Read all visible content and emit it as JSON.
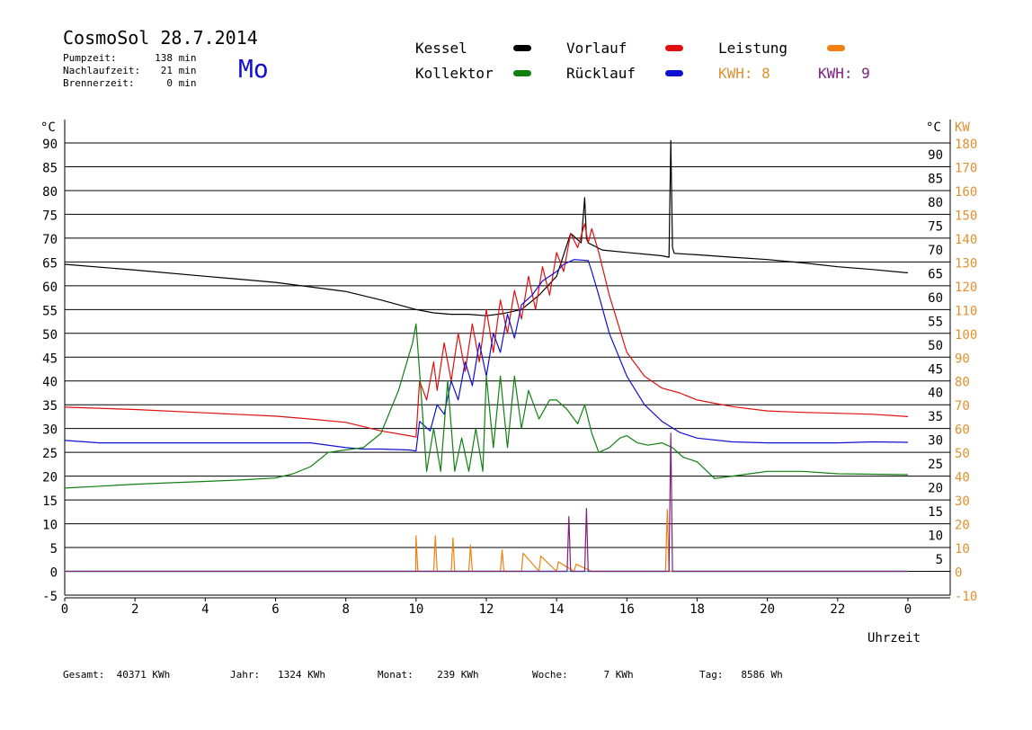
{
  "header": {
    "title": "CosmoSol 28.7.2014",
    "day": "Mo",
    "stats": [
      {
        "label": "Pumpzeit:",
        "value": "138",
        "unit": "min"
      },
      {
        "label": "Nachlaufzeit:",
        "value": "21",
        "unit": "min"
      },
      {
        "label": "Brennerzeit:",
        "value": "0",
        "unit": "min"
      }
    ]
  },
  "legend": {
    "items": [
      {
        "label": "Kessel",
        "color": "#000000"
      },
      {
        "label": "Vorlauf",
        "color": "#e01010"
      },
      {
        "label": "Leistung",
        "color": "#f08010"
      },
      {
        "label": "Kollektor",
        "color": "#108010"
      },
      {
        "label": "Rücklauf",
        "color": "#1010d0"
      }
    ],
    "kwh": [
      {
        "label": "KWH: 8",
        "color": "#e09030"
      },
      {
        "label": "KWH: 9",
        "color": "#802080"
      }
    ]
  },
  "footer": {
    "gesamt": "Gesamt:  40371 KWh",
    "jahr": "Jahr:   1324 KWh",
    "monat": "Monat:    239 KWh",
    "woche": "Woche:      7 KWh",
    "tag": "Tag:   8586 Wh"
  },
  "chart_data": {
    "type": "line",
    "xlabel": "Uhrzeit",
    "ylabel": "°C",
    "ylabel_right": "KW",
    "xlim": [
      0,
      24
    ],
    "ylim": [
      -5,
      95
    ],
    "ylim_right": [
      -10,
      190
    ],
    "x_ticks": [
      "0",
      "2",
      "4",
      "6",
      "8",
      "10",
      "12",
      "14",
      "16",
      "18",
      "20",
      "22",
      "0"
    ],
    "y_ticks_left": [
      "-5",
      "0",
      "5",
      "10",
      "15",
      "20",
      "25",
      "30",
      "35",
      "40",
      "45",
      "50",
      "55",
      "60",
      "65",
      "70",
      "75",
      "80",
      "85",
      "90"
    ],
    "y_ticks_mid": [
      "5",
      "10",
      "15",
      "20",
      "25",
      "30",
      "35",
      "40",
      "45",
      "50",
      "55",
      "60",
      "65",
      "70",
      "75",
      "80",
      "85",
      "90"
    ],
    "y_ticks_right": [
      "-10",
      "0",
      "10",
      "20",
      "30",
      "40",
      "50",
      "60",
      "70",
      "80",
      "90",
      "100",
      "110",
      "120",
      "130",
      "140",
      "150",
      "160",
      "170",
      "180"
    ],
    "grid": true,
    "series": [
      {
        "name": "Kessel",
        "color": "#000000",
        "x": [
          0,
          2,
          4,
          6,
          8,
          9,
          10,
          10.5,
          11,
          11.5,
          12,
          12.5,
          13,
          13.5,
          14,
          14.4,
          14.7,
          14.8,
          14.85,
          14.9,
          15.3,
          16,
          17,
          17.2,
          17.25,
          17.3,
          17.35,
          18,
          19,
          20,
          21,
          22,
          23,
          24
        ],
        "y": [
          64.5,
          63.3,
          62,
          60.7,
          58.8,
          57,
          55,
          54.3,
          54,
          54,
          53.7,
          54.2,
          55,
          58,
          62,
          71,
          69,
          78.5,
          70,
          69,
          67.5,
          67,
          66.3,
          66,
          90.5,
          68,
          66.8,
          66.5,
          66,
          65.5,
          64.8,
          64,
          63.4,
          62.7
        ]
      },
      {
        "name": "Vorlauf",
        "color": "#e01010",
        "x": [
          0,
          2,
          4,
          6,
          7,
          8,
          9,
          9.8,
          10,
          10.1,
          10.3,
          10.5,
          10.6,
          10.8,
          11,
          11.2,
          11.4,
          11.6,
          11.8,
          12,
          12.2,
          12.4,
          12.6,
          12.8,
          13,
          13.2,
          13.4,
          13.6,
          13.8,
          14,
          14.2,
          14.4,
          14.6,
          14.8,
          14.9,
          15,
          15.2,
          15.5,
          16,
          16.5,
          17,
          17.5,
          18,
          19,
          20,
          21,
          22,
          23,
          24
        ],
        "y": [
          34.5,
          34,
          33.3,
          32.6,
          32,
          31.3,
          29.5,
          28.5,
          28.2,
          40,
          36,
          44,
          38,
          48,
          40,
          50,
          42,
          52,
          44,
          55,
          46,
          57,
          50,
          59,
          53,
          62,
          55,
          64,
          58,
          67,
          63,
          71,
          68,
          73,
          69,
          72,
          67,
          58,
          46,
          41,
          38.5,
          37.5,
          36,
          34.6,
          33.7,
          33.4,
          33.2,
          33,
          32.5
        ]
      },
      {
        "name": "Rücklauf",
        "color": "#1010d0",
        "x": [
          0,
          1,
          2,
          4,
          6,
          7,
          8,
          8.5,
          9,
          9.8,
          10,
          10.1,
          10.4,
          10.6,
          10.8,
          11,
          11.2,
          11.4,
          11.6,
          11.8,
          12,
          12.2,
          12.4,
          12.6,
          12.8,
          13,
          13.3,
          13.6,
          14,
          14.2,
          14.5,
          14.9,
          15,
          15.2,
          15.5,
          16,
          16.5,
          17,
          17.5,
          18,
          19,
          20,
          21,
          22,
          23,
          24
        ],
        "y": [
          27.5,
          27,
          27,
          27,
          27,
          27,
          26,
          25.7,
          25.7,
          25.5,
          25.3,
          31.5,
          29.5,
          35,
          33,
          40,
          36,
          44,
          39,
          48,
          41,
          50,
          46,
          54,
          49,
          56,
          58,
          61,
          63,
          64.5,
          65.5,
          65.3,
          63,
          58,
          50,
          41,
          35,
          31.5,
          29.2,
          28,
          27.2,
          27,
          27,
          27,
          27.2,
          27.1
        ]
      },
      {
        "name": "Kollektor",
        "color": "#108010",
        "x": [
          0,
          1,
          2,
          3,
          4,
          5,
          6,
          6.5,
          7,
          7.5,
          8,
          8.5,
          9,
          9.5,
          9.9,
          10,
          10.1,
          10.3,
          10.5,
          10.7,
          10.9,
          11.1,
          11.3,
          11.5,
          11.7,
          11.9,
          12,
          12.2,
          12.4,
          12.6,
          12.8,
          13,
          13.2,
          13.5,
          13.8,
          14,
          14.3,
          14.6,
          14.8,
          15,
          15.2,
          15.5,
          15.8,
          16,
          16.3,
          16.6,
          17,
          17.3,
          17.6,
          18,
          18.5,
          19,
          19.5,
          20,
          21,
          22,
          23,
          24
        ],
        "y": [
          17.5,
          17.9,
          18.3,
          18.6,
          18.9,
          19.2,
          19.6,
          20.5,
          22,
          25,
          25.5,
          26,
          29,
          38,
          48,
          52,
          42,
          21,
          30,
          21,
          40,
          21,
          28,
          21,
          30,
          21,
          41,
          26,
          41,
          26,
          41,
          30,
          38,
          32,
          36,
          36,
          34,
          31,
          35,
          29,
          25,
          26,
          28,
          28.5,
          27,
          26.5,
          27,
          26,
          24,
          23,
          19.5,
          20,
          20.5,
          21,
          21,
          20.5,
          20.4,
          20.3
        ]
      },
      {
        "name": "Leistung",
        "color": "#f08010",
        "x": [
          0,
          9.99,
          10,
          10.05,
          10.5,
          10.55,
          10.6,
          11,
          11.05,
          11.1,
          11.5,
          11.55,
          11.6,
          12,
          12.4,
          12.45,
          12.5,
          13,
          13.05,
          13.5,
          13.55,
          14,
          14.05,
          14.5,
          14.55,
          15,
          15.05,
          17.1,
          17.15,
          17.2,
          24
        ],
        "y": [
          0,
          0,
          7.5,
          0,
          0,
          7.5,
          0,
          0,
          7,
          0,
          0,
          5.5,
          0,
          0,
          0,
          4.5,
          0,
          0,
          3.8,
          0,
          3.2,
          0,
          2,
          0,
          1.5,
          0,
          0,
          0,
          13,
          0,
          0
        ]
      },
      {
        "name": "KWH: 9",
        "color": "#802080",
        "x": [
          0,
          14.3,
          14.35,
          14.4,
          14.8,
          14.85,
          14.9,
          17.2,
          17.25,
          17.3,
          24
        ],
        "y": [
          0,
          0,
          11.5,
          0,
          0,
          13.2,
          0,
          0,
          29,
          0,
          0
        ]
      }
    ]
  }
}
